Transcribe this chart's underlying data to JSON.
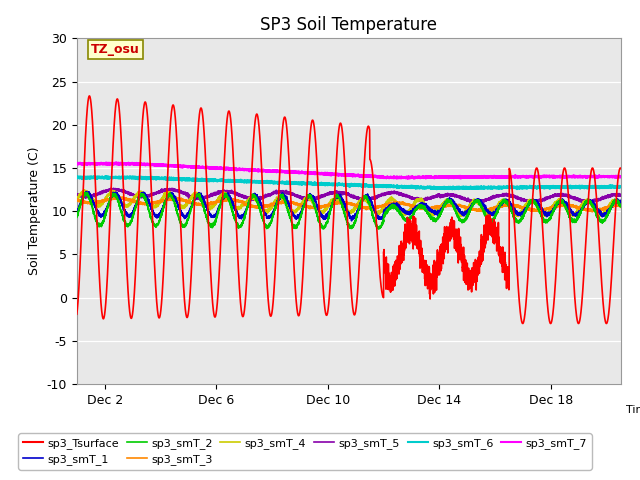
{
  "title": "SP3 Soil Temperature",
  "xlabel": "Time",
  "ylabel": "Soil Temperature (C)",
  "ylim": [
    -10,
    30
  ],
  "xlim": [
    1.0,
    20.5
  ],
  "xtick_positions": [
    2,
    6,
    10,
    14,
    18
  ],
  "xtick_labels": [
    "Dec 2",
    "Dec 6",
    "Dec 10",
    "Dec 14",
    "Dec 18"
  ],
  "ytick_positions": [
    -10,
    -5,
    0,
    5,
    10,
    15,
    20,
    25,
    30
  ],
  "annotation_text": "TZ_osu",
  "background_color": "#e8e8e8",
  "series": {
    "sp3_Tsurface": {
      "color": "#ff0000",
      "lw": 1.2
    },
    "sp3_smT_1": {
      "color": "#0000cc",
      "lw": 1.2
    },
    "sp3_smT_2": {
      "color": "#00cc00",
      "lw": 1.2
    },
    "sp3_smT_3": {
      "color": "#ff8800",
      "lw": 1.5
    },
    "sp3_smT_4": {
      "color": "#cccc00",
      "lw": 1.5
    },
    "sp3_smT_5": {
      "color": "#8800aa",
      "lw": 1.5
    },
    "sp3_smT_6": {
      "color": "#00cccc",
      "lw": 1.8
    },
    "sp3_smT_7": {
      "color": "#ff00ff",
      "lw": 1.8
    }
  }
}
